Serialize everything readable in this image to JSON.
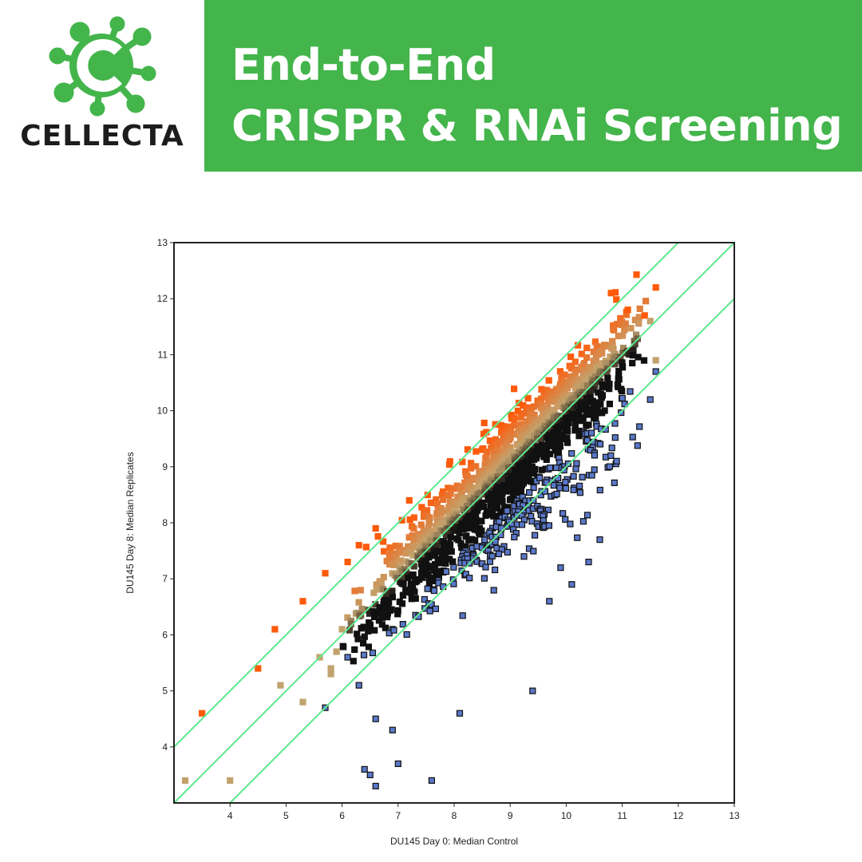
{
  "brand": {
    "name": "CELLECTA",
    "logo_icon": "virus-c-logo-icon",
    "color": "#43b54b"
  },
  "banner": {
    "line1": "End-to-End",
    "line2": "CRISPR & RNAi Screening",
    "background": "#43b54b"
  },
  "chart_data": {
    "type": "scatter",
    "title": "",
    "xlabel": "DU145 Day 0: Median Control",
    "ylabel": "DU145 Day 8: Median Replicates",
    "xlim": [
      3,
      13
    ],
    "ylim": [
      3,
      13
    ],
    "x_ticks": [
      4,
      5,
      6,
      7,
      8,
      9,
      10,
      11,
      12,
      13
    ],
    "y_ticks": [
      4,
      5,
      6,
      7,
      8,
      9,
      10,
      11,
      12,
      13
    ],
    "grid": false,
    "reference_lines": [
      {
        "intercept": 1,
        "slope": 1,
        "color": "#5fe88f"
      },
      {
        "intercept": 0,
        "slope": 1,
        "color": "#5fe88f"
      },
      {
        "intercept": -1,
        "slope": 1,
        "color": "#5fe88f"
      }
    ],
    "colors": {
      "enriched": "#ff5a0a",
      "neutral": "#c2a36e",
      "depleted": "#111111",
      "depleted_outlier": "#5a78c8"
    },
    "series": [
      {
        "class": "enriched-outliers",
        "points": [
          [
            3.5,
            4.6
          ],
          [
            4.5,
            5.4
          ],
          [
            4.8,
            6.1
          ],
          [
            5.3,
            6.6
          ],
          [
            5.7,
            7.1
          ],
          [
            6.1,
            7.3
          ],
          [
            6.3,
            7.6
          ],
          [
            6.6,
            7.9
          ],
          [
            7.2,
            8.4
          ],
          [
            10.8,
            12.1
          ],
          [
            11.6,
            12.2
          ],
          [
            11.4,
            11.7
          ],
          [
            11.1,
            11.8
          ]
        ]
      },
      {
        "class": "neutral-outliers",
        "points": [
          [
            3.2,
            3.4
          ],
          [
            4.0,
            3.4
          ],
          [
            4.9,
            5.1
          ],
          [
            5.3,
            4.8
          ],
          [
            5.6,
            5.6
          ],
          [
            5.8,
            5.4
          ],
          [
            5.8,
            5.3
          ],
          [
            5.9,
            5.7
          ],
          [
            6.0,
            6.1
          ],
          [
            11.6,
            10.9
          ],
          [
            11.5,
            11.6
          ]
        ]
      },
      {
        "class": "depleted-outliers",
        "points": [
          [
            6.4,
            3.6
          ],
          [
            6.5,
            3.5
          ],
          [
            6.6,
            3.3
          ],
          [
            7.0,
            3.7
          ],
          [
            7.6,
            3.4
          ],
          [
            6.9,
            4.3
          ],
          [
            6.6,
            4.5
          ],
          [
            8.1,
            4.6
          ],
          [
            9.4,
            5.0
          ],
          [
            10.4,
            7.3
          ],
          [
            10.6,
            7.7
          ],
          [
            10.9,
            9.1
          ],
          [
            10.1,
            6.9
          ],
          [
            9.9,
            7.2
          ],
          [
            9.7,
            6.6
          ],
          [
            6.3,
            5.1
          ],
          [
            5.7,
            4.7
          ],
          [
            6.1,
            5.6
          ],
          [
            11.6,
            10.7
          ],
          [
            11.5,
            10.2
          ]
        ]
      }
    ],
    "main_cloud": {
      "n_points": 1600,
      "x_range": [
        5.9,
        11.6
      ],
      "x_mode": 9.3,
      "trend": "y = x",
      "residual_sd": 0.4,
      "marker": "square"
    }
  }
}
